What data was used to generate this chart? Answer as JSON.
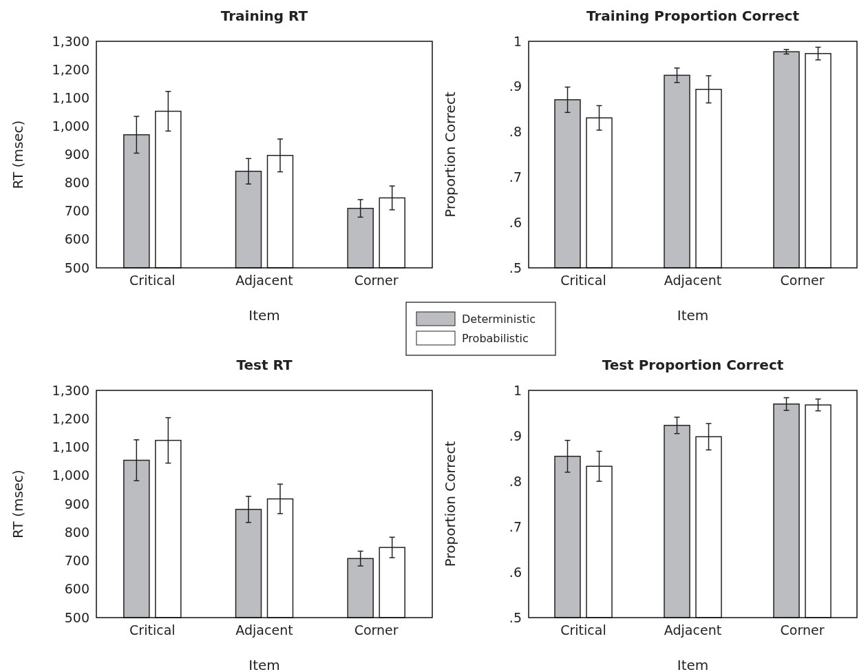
{
  "chart_data": [
    {
      "type": "bar",
      "title": "Training RT",
      "xlabel": "Item",
      "ylabel": "RT (msec)",
      "categories": [
        "Critical",
        "Adjacent",
        "Corner"
      ],
      "legend": "bottom right",
      "series": [
        {
          "name": "Deterministic",
          "color": "#bcbdc1",
          "values": [
            970,
            841,
            710
          ],
          "errors": [
            65,
            45,
            31
          ]
        },
        {
          "name": "Probabilistic",
          "color": "#ffffff",
          "values": [
            1053,
            897,
            747
          ],
          "errors": [
            70,
            58,
            42
          ]
        }
      ],
      "ylim": [
        500,
        1300
      ],
      "yticks": [
        500,
        600,
        700,
        800,
        900,
        {
          "value": 1000,
          "label": "1,000"
        },
        {
          "value": 1100,
          "label": "1,100"
        },
        {
          "value": 1200,
          "label": "1,200"
        },
        {
          "value": 1300,
          "label": "1,300"
        }
      ]
    },
    {
      "type": "bar",
      "title": "Training Proportion Correct",
      "xlabel": "Item",
      "ylabel": "Proportion Correct",
      "categories": [
        "Critical",
        "Adjacent",
        "Corner"
      ],
      "series": [
        {
          "color": "#bcbdc1",
          "values": [
            0.871,
            0.925,
            0.977
          ],
          "errors": [
            0.028,
            0.016,
            0.005
          ]
        },
        {
          "color": "#ffffff",
          "values": [
            0.831,
            0.894,
            0.973
          ],
          "errors": [
            0.027,
            0.03,
            0.014
          ]
        }
      ],
      "ylim": [
        0.5,
        1
      ],
      "yticks": [
        {
          "value": 0.5,
          "label": ".5"
        },
        {
          "value": 0.6,
          "label": ".6"
        },
        {
          "value": 0.7,
          "label": ".7"
        },
        {
          "value": 0.8,
          "label": ".8"
        },
        {
          "value": 0.9,
          "label": ".9"
        },
        1
      ]
    },
    {
      "type": "bar",
      "title": "Test RT",
      "xlabel": "Item",
      "ylabel": "RT (msec)",
      "categories": [
        "Critical",
        "Adjacent",
        "Corner"
      ],
      "series": [
        {
          "color": "#bcbdc1",
          "values": [
            1054,
            881,
            708
          ],
          "errors": [
            72,
            46,
            26
          ]
        },
        {
          "color": "#ffffff",
          "values": [
            1124,
            918,
            747
          ],
          "errors": [
            80,
            52,
            36
          ]
        }
      ],
      "ylim": [
        500,
        1300
      ],
      "yticks": [
        500,
        600,
        700,
        800,
        900,
        {
          "value": 1000,
          "label": "1,000"
        },
        {
          "value": 1100,
          "label": "1,100"
        },
        {
          "value": 1200,
          "label": "1,200"
        },
        {
          "value": 1300,
          "label": "1,300"
        }
      ]
    },
    {
      "type": "bar",
      "title": "Test Proportion Correct",
      "xlabel": "Item",
      "ylabel": "Proportion Correct",
      "categories": [
        "Critical",
        "Adjacent",
        "Corner"
      ],
      "series": [
        {
          "color": "#bcbdc1",
          "values": [
            0.855,
            0.923,
            0.97
          ],
          "errors": [
            0.035,
            0.018,
            0.014
          ]
        },
        {
          "color": "#ffffff",
          "values": [
            0.833,
            0.898,
            0.968
          ],
          "errors": [
            0.033,
            0.029,
            0.013
          ]
        }
      ],
      "ylim": [
        0.5,
        1
      ],
      "yticks": [
        {
          "value": 0.5,
          "label": ".5"
        },
        {
          "value": 0.6,
          "label": ".6"
        },
        {
          "value": 0.7,
          "label": ".7"
        },
        {
          "value": 0.8,
          "label": ".8"
        },
        {
          "value": 0.9,
          "label": ".9"
        },
        1
      ]
    }
  ]
}
